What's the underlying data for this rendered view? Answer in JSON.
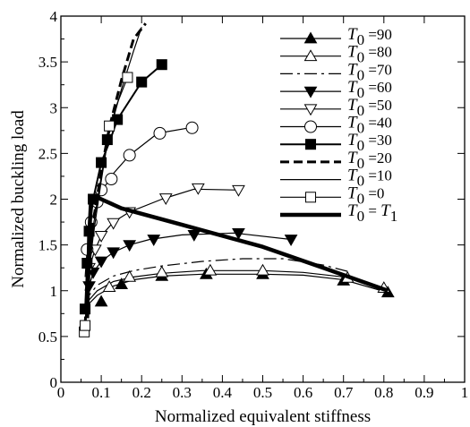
{
  "chart_data": {
    "type": "line",
    "title": "",
    "xlabel": "Normalized equivalent stiffness",
    "ylabel": "Normalized buckling load",
    "xlim": [
      0,
      1
    ],
    "ylim": [
      0,
      4
    ],
    "xticks": [
      0,
      0.1,
      0.2,
      0.3,
      0.4,
      0.5,
      0.6,
      0.7,
      0.8,
      0.9,
      1
    ],
    "xtick_labels": [
      "0",
      "0.1",
      "0.2",
      "0.3",
      "0.4",
      "0.5",
      "0.6",
      "0.7",
      "0.8",
      "0.9",
      "1"
    ],
    "yticks": [
      0,
      0.5,
      1,
      1.5,
      2,
      2.5,
      3,
      3.5,
      4
    ],
    "ytick_labels": [
      "0",
      "0.5",
      "1",
      "1.5",
      "2",
      "2.5",
      "3",
      "3.5",
      "4"
    ],
    "grid": false,
    "legend_position": "top-right",
    "series": [
      {
        "name": "T0 =90",
        "legend": {
          "sym": "T",
          "sub": "0",
          "rest": " =90"
        },
        "line": "solid",
        "width": 1.2,
        "marker": "triangle-up",
        "fill": true,
        "points": [
          [
            0.06,
            0.8
          ],
          [
            0.07,
            0.86
          ],
          [
            0.09,
            0.95
          ],
          [
            0.13,
            1.05
          ],
          [
            0.18,
            1.12
          ],
          [
            0.25,
            1.16
          ],
          [
            0.35,
            1.18
          ],
          [
            0.5,
            1.18
          ],
          [
            0.6,
            1.17
          ],
          [
            0.7,
            1.12
          ],
          [
            0.81,
            0.98
          ]
        ],
        "marker_points": [
          [
            0.1,
            0.88
          ],
          [
            0.15,
            1.07
          ],
          [
            0.25,
            1.16
          ],
          [
            0.36,
            1.18
          ],
          [
            0.5,
            1.18
          ],
          [
            0.7,
            1.11
          ],
          [
            0.81,
            0.98
          ]
        ]
      },
      {
        "name": "T0 =80",
        "legend": {
          "sym": "T",
          "sub": "0",
          "rest": " =80"
        },
        "line": "solid",
        "width": 1.2,
        "marker": "triangle-up",
        "fill": false,
        "points": [
          [
            0.06,
            0.82
          ],
          [
            0.07,
            0.9
          ],
          [
            0.09,
            1.0
          ],
          [
            0.13,
            1.1
          ],
          [
            0.18,
            1.15
          ],
          [
            0.25,
            1.19
          ],
          [
            0.35,
            1.22
          ],
          [
            0.5,
            1.22
          ],
          [
            0.6,
            1.2
          ],
          [
            0.7,
            1.15
          ],
          [
            0.8,
            1.03
          ]
        ],
        "marker_points": [
          [
            0.12,
            1.04
          ],
          [
            0.17,
            1.15
          ],
          [
            0.25,
            1.2
          ],
          [
            0.37,
            1.22
          ],
          [
            0.5,
            1.22
          ],
          [
            0.71,
            1.14
          ],
          [
            0.8,
            1.03
          ]
        ]
      },
      {
        "name": "T0 =70",
        "legend": {
          "sym": "T",
          "sub": "0",
          "rest": " =70"
        },
        "line": "dashdot",
        "width": 1.2,
        "marker": "none",
        "points": [
          [
            0.06,
            0.85
          ],
          [
            0.07,
            0.95
          ],
          [
            0.09,
            1.06
          ],
          [
            0.13,
            1.16
          ],
          [
            0.18,
            1.22
          ],
          [
            0.25,
            1.27
          ],
          [
            0.35,
            1.32
          ],
          [
            0.45,
            1.35
          ],
          [
            0.55,
            1.35
          ],
          [
            0.65,
            1.28
          ],
          [
            0.72,
            1.2
          ]
        ]
      },
      {
        "name": "T0 =60",
        "legend": {
          "sym": "T",
          "sub": "0",
          "rest": " =60"
        },
        "line": "solid",
        "width": 1.2,
        "marker": "triangle-down",
        "fill": true,
        "points": [
          [
            0.06,
            0.9
          ],
          [
            0.07,
            1.05
          ],
          [
            0.08,
            1.2
          ],
          [
            0.1,
            1.32
          ],
          [
            0.13,
            1.42
          ],
          [
            0.17,
            1.5
          ],
          [
            0.22,
            1.56
          ],
          [
            0.3,
            1.61
          ],
          [
            0.43,
            1.63
          ],
          [
            0.57,
            1.56
          ]
        ],
        "marker_points": [
          [
            0.07,
            1.05
          ],
          [
            0.08,
            1.2
          ],
          [
            0.1,
            1.32
          ],
          [
            0.13,
            1.42
          ],
          [
            0.17,
            1.5
          ],
          [
            0.23,
            1.56
          ],
          [
            0.33,
            1.61
          ],
          [
            0.44,
            1.63
          ],
          [
            0.57,
            1.56
          ]
        ]
      },
      {
        "name": "T0 =50",
        "legend": {
          "sym": "T",
          "sub": "0",
          "rest": " =50"
        },
        "line": "solid",
        "width": 1.2,
        "marker": "triangle-down",
        "fill": false,
        "points": [
          [
            0.06,
            1.0
          ],
          [
            0.07,
            1.25
          ],
          [
            0.085,
            1.45
          ],
          [
            0.1,
            1.6
          ],
          [
            0.13,
            1.75
          ],
          [
            0.17,
            1.86
          ],
          [
            0.25,
            2.0
          ],
          [
            0.33,
            2.11
          ],
          [
            0.44,
            2.1
          ]
        ],
        "marker_points": [
          [
            0.07,
            1.25
          ],
          [
            0.085,
            1.45
          ],
          [
            0.1,
            1.6
          ],
          [
            0.13,
            1.74
          ],
          [
            0.17,
            1.86
          ],
          [
            0.26,
            2.01
          ],
          [
            0.34,
            2.12
          ],
          [
            0.44,
            2.1
          ]
        ]
      },
      {
        "name": "T0 =40",
        "legend": {
          "sym": "T",
          "sub": "0",
          "rest": " =40"
        },
        "line": "solid",
        "width": 1.2,
        "marker": "circle",
        "fill": false,
        "points": [
          [
            0.06,
            1.15
          ],
          [
            0.065,
            1.45
          ],
          [
            0.075,
            1.75
          ],
          [
            0.09,
            1.97
          ],
          [
            0.1,
            2.08
          ],
          [
            0.13,
            2.28
          ],
          [
            0.17,
            2.48
          ],
          [
            0.24,
            2.72
          ],
          [
            0.32,
            2.78
          ]
        ],
        "marker_points": [
          [
            0.065,
            1.45
          ],
          [
            0.075,
            1.75
          ],
          [
            0.09,
            1.97
          ],
          [
            0.1,
            2.1
          ],
          [
            0.125,
            2.22
          ],
          [
            0.17,
            2.48
          ],
          [
            0.245,
            2.72
          ],
          [
            0.325,
            2.78
          ]
        ]
      },
      {
        "name": "T0 =30",
        "legend": {
          "sym": "T",
          "sub": "0",
          "rest": " =30"
        },
        "line": "solid",
        "width": 2,
        "marker": "square",
        "fill": true,
        "points": [
          [
            0.06,
            0.8
          ],
          [
            0.065,
            1.3
          ],
          [
            0.07,
            1.65
          ],
          [
            0.08,
            2.0
          ],
          [
            0.09,
            2.2
          ],
          [
            0.1,
            2.4
          ],
          [
            0.12,
            2.62
          ],
          [
            0.14,
            2.87
          ],
          [
            0.2,
            3.28
          ],
          [
            0.25,
            3.47
          ]
        ],
        "marker_points": [
          [
            0.06,
            0.8
          ],
          [
            0.065,
            1.3
          ],
          [
            0.07,
            1.65
          ],
          [
            0.08,
            2.0
          ],
          [
            0.1,
            2.4
          ],
          [
            0.115,
            2.65
          ],
          [
            0.14,
            2.87
          ],
          [
            0.2,
            3.28
          ],
          [
            0.25,
            3.47
          ]
        ]
      },
      {
        "name": "T0 =20",
        "legend": {
          "sym": "T",
          "sub": "0",
          "rest": " =20"
        },
        "line": "dashed",
        "width": 3,
        "marker": "none",
        "points": [
          [
            0.06,
            0.62
          ],
          [
            0.065,
            1.1
          ],
          [
            0.08,
            1.75
          ],
          [
            0.1,
            2.3
          ],
          [
            0.12,
            2.78
          ],
          [
            0.15,
            3.3
          ],
          [
            0.18,
            3.75
          ],
          [
            0.21,
            3.92
          ]
        ]
      },
      {
        "name": "T0 =10",
        "legend": {
          "sym": "T",
          "sub": "0",
          "rest": " =10"
        },
        "line": "solid",
        "width": 1.2,
        "marker": "none",
        "points": [
          [
            0.06,
            0.6
          ],
          [
            0.065,
            1.05
          ],
          [
            0.08,
            1.7
          ],
          [
            0.1,
            2.25
          ],
          [
            0.12,
            2.72
          ],
          [
            0.15,
            3.2
          ],
          [
            0.18,
            3.62
          ],
          [
            0.2,
            3.88
          ]
        ]
      },
      {
        "name": "T0 =0",
        "legend": {
          "sym": "T",
          "sub": "0",
          "rest": " =0"
        },
        "line": "solid",
        "width": 1.2,
        "marker": "square",
        "fill": false,
        "points": [
          [
            0.06,
            0.55
          ],
          [
            0.065,
            1.0
          ],
          [
            0.08,
            1.6
          ],
          [
            0.1,
            2.2
          ],
          [
            0.12,
            2.75
          ],
          [
            0.14,
            3.05
          ],
          [
            0.165,
            3.33
          ]
        ],
        "marker_points": [
          [
            0.058,
            0.55
          ],
          [
            0.06,
            0.62
          ],
          [
            0.12,
            2.8
          ],
          [
            0.165,
            3.33
          ]
        ]
      },
      {
        "name": "T0 = T1",
        "legend": {
          "sym": "T",
          "sub": "0",
          "rest": " = ",
          "sym2": "T",
          "sub2": "1"
        },
        "line": "solid",
        "width": 4.5,
        "marker": "none",
        "points": [
          [
            0.065,
            0.7
          ],
          [
            0.068,
            1.2
          ],
          [
            0.07,
            1.6
          ],
          [
            0.075,
            2.0
          ],
          [
            0.09,
            2.02
          ],
          [
            0.15,
            1.9
          ],
          [
            0.3,
            1.72
          ],
          [
            0.5,
            1.48
          ],
          [
            0.65,
            1.25
          ],
          [
            0.81,
            1.0
          ]
        ]
      }
    ]
  }
}
